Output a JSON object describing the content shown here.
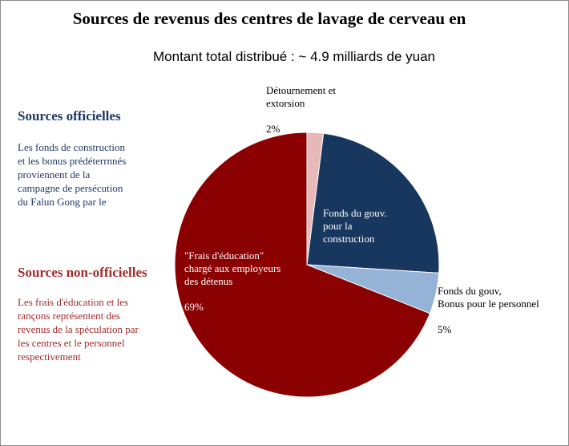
{
  "chart_data": {
    "type": "pie",
    "title": "Sources de revenus des centres de lavage de cerveau en",
    "subtitle": "Montant total distribué : ~ 4.9 milliards de yuan",
    "slices": [
      {
        "name": "Détournement et extorsion",
        "label": "Détournement et\nextorsion",
        "value": 2,
        "value_label": "2%",
        "color": "#e6b9b8"
      },
      {
        "name": "Fonds du gouv. pour la construction",
        "label": "Fonds du gouv.\npour la\nconstruction",
        "value": 24,
        "value_label": "",
        "color": "#17375e"
      },
      {
        "name": "Fonds du gouv, Bonus pour le personnel",
        "label": "Fonds du gouv,\nBonus pour le personnel",
        "value": 5,
        "value_label": "5%",
        "color": "#95b3d7"
      },
      {
        "name": "\"Frais d'éducation\" chargé aux employeurs des détenus",
        "label": "\"Frais d'éducation\"\nchargé aux employeurs\ndes détenus",
        "value": 69,
        "value_label": "69%",
        "color": "#8b0000"
      }
    ]
  },
  "sidebar": {
    "official_heading": "Sources officielles",
    "official_text": "Les fonds  de construction\net les bonus  prédéterrnnés\nproviennent  de la\ncampagne  de persécution\ndu Falun  Gong  par le",
    "unofficial_heading": "Sources non-officielles",
    "unofficial_text": "Les frais d'éducation et les\nrançons représentent  des\nrevenus de la spéculation par\nles centres et le personnel\nrespectivement"
  }
}
